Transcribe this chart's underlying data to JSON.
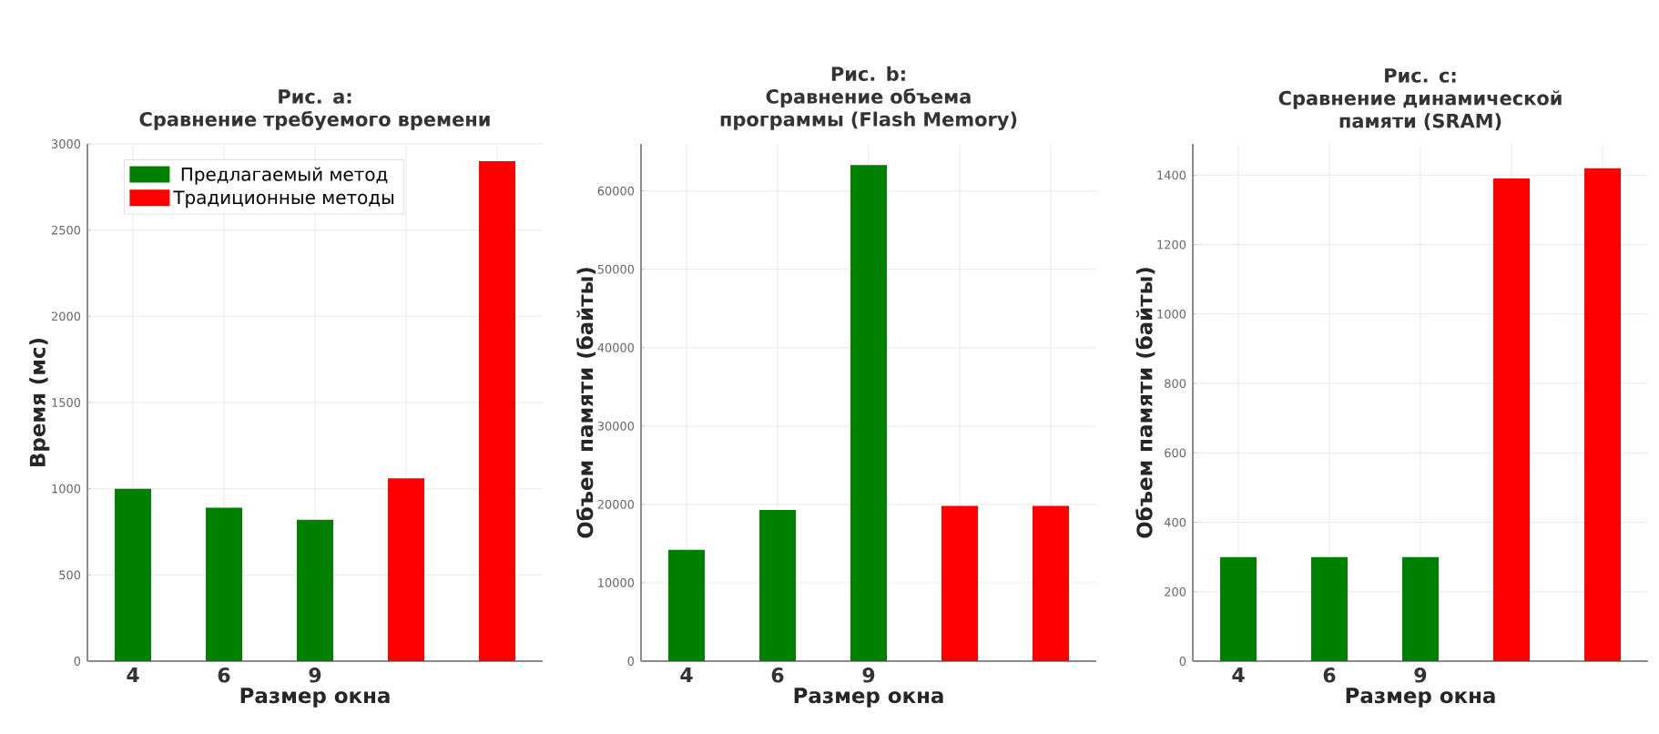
{
  "chart_data": [
    {
      "type": "bar",
      "title": "Рис. a:",
      "subtitle": "Сравнение требуемого времени",
      "xlabel": "Размер окна",
      "ylabel": "Время (мс)",
      "categories": [
        "4",
        "6",
        "9",
        null,
        null
      ],
      "series": [
        {
          "name": "Предлагаемый метод",
          "color": "#008000",
          "values": [
            1000,
            890,
            820,
            null,
            null
          ]
        },
        {
          "name": "Традиционные методы",
          "color": "#ff0000",
          "values": [
            null,
            null,
            null,
            1060,
            2900
          ]
        }
      ],
      "ylim": [
        0,
        3000
      ],
      "yticks": [
        0,
        500,
        1000,
        1500,
        2000,
        2500,
        3000
      ],
      "grid": true,
      "legend": "top left"
    },
    {
      "type": "bar",
      "title": "Рис. b:",
      "subtitle": "Сравнение объема программы (Flash Memory)",
      "xlabel": "Размер окна",
      "ylabel": "Объем памяти (байты)",
      "categories": [
        "4",
        "6",
        "9",
        null,
        null
      ],
      "series": [
        {
          "color": "#008000",
          "values": [
            14200,
            19300,
            63300,
            null,
            null
          ]
        },
        {
          "color": "#ff0000",
          "values": [
            null,
            null,
            null,
            19800,
            19800
          ]
        }
      ],
      "ylim": [
        0,
        66000
      ],
      "yticks": [
        0,
        10000,
        20000,
        30000,
        40000,
        50000,
        60000
      ],
      "grid": true
    },
    {
      "type": "bar",
      "title": "Рис. c:",
      "subtitle": "Сравнение динамической памяти (SRAM)",
      "xlabel": "Размер окна",
      "ylabel": "Объем памяти (байты)",
      "categories": [
        "4",
        "6",
        "9",
        null,
        null
      ],
      "series": [
        {
          "color": "#008000",
          "values": [
            300,
            300,
            300,
            null,
            null
          ]
        },
        {
          "color": "#ff0000",
          "values": [
            null,
            null,
            null,
            1390,
            1420
          ]
        }
      ],
      "ylim": [
        0,
        1490
      ],
      "yticks": [
        0,
        200,
        400,
        600,
        800,
        1000,
        1200,
        1400
      ],
      "grid": true
    }
  ]
}
